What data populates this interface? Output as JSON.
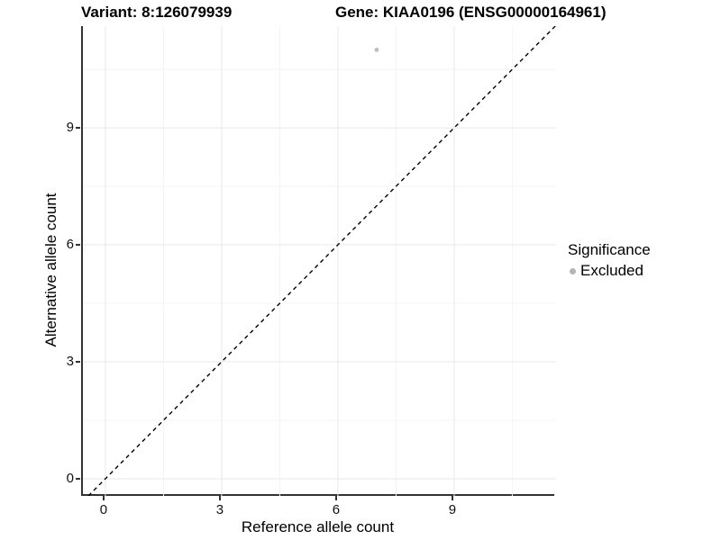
{
  "titles": {
    "variant": "Variant: 8:126079939",
    "gene": "Gene: KIAA0196 (ENSG00000164961)"
  },
  "legend": {
    "title": "Significance",
    "items": [
      {
        "label": "Excluded",
        "color": "#b5b5b5"
      }
    ]
  },
  "colors": {
    "axis_line": "#333333",
    "major_grid": "#e8e8e8",
    "minor_grid": "#f4f4f4",
    "identity_line": "#000000",
    "point": "#bdbdbd",
    "text": "#000000"
  },
  "chart_data": {
    "type": "scatter",
    "title": "",
    "xlabel": "Reference allele count",
    "ylabel": "Alternative allele count",
    "x_ticks": [
      0,
      3,
      6,
      9
    ],
    "y_ticks": [
      0,
      3,
      6,
      9
    ],
    "minor_x": [
      1.5,
      4.5,
      7.5,
      10.5
    ],
    "minor_y": [
      1.5,
      4.5,
      7.5,
      10.5
    ],
    "xlim": [
      -0.58,
      11.63
    ],
    "ylim": [
      -0.44,
      11.61
    ],
    "grid": true,
    "legend_position": "right",
    "identity_line": {
      "style": "dashed",
      "slope": 1,
      "intercept": 0
    },
    "series": [
      {
        "name": "Excluded",
        "color": "#bdbdbd",
        "points": [
          {
            "x": 7,
            "y": 11
          }
        ]
      }
    ]
  }
}
